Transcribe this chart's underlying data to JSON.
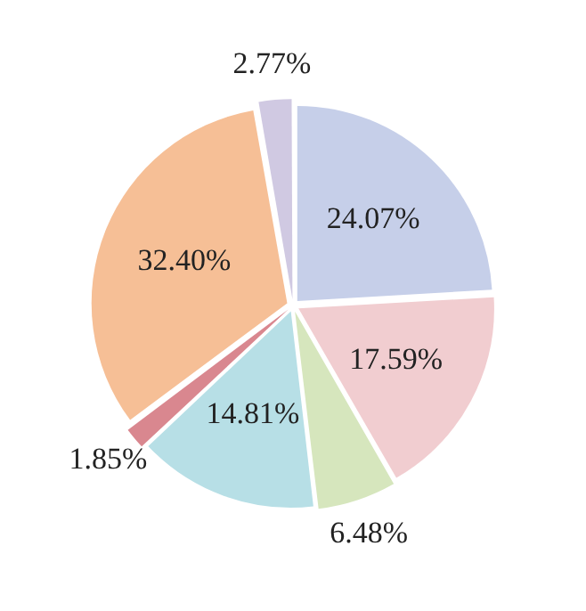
{
  "chart_data": {
    "type": "pie",
    "categories": [
      null,
      null,
      null,
      null,
      null,
      null,
      null
    ],
    "values": [
      24.07,
      17.59,
      6.48,
      14.81,
      1.85,
      32.4,
      2.77
    ],
    "colors": [
      "#c6cfe9",
      "#f1cdd0",
      "#d6e6bd",
      "#b7dfe6",
      "#d9878f",
      "#f6bf96",
      "#d0c9e2"
    ],
    "value_labels": [
      "24.07%",
      "17.59%",
      "6.48%",
      "14.81%",
      "1.85%",
      "32.40%",
      "2.77%"
    ],
    "legend": false
  }
}
